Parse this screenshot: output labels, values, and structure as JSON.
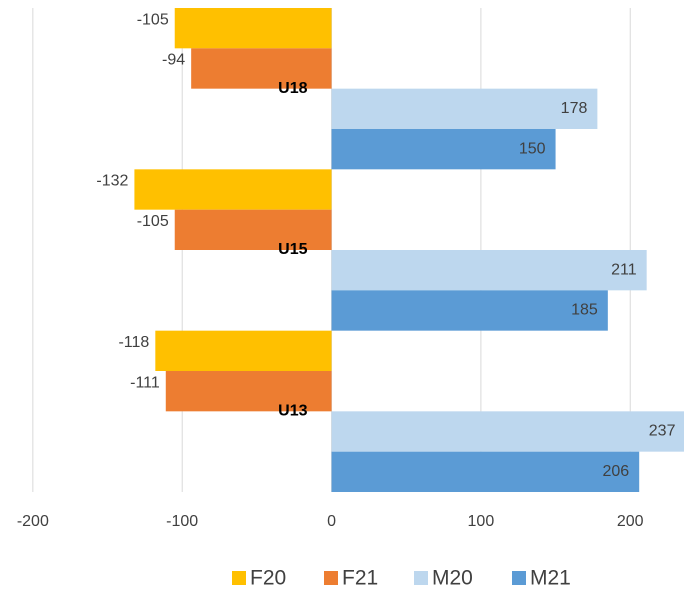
{
  "chart_data": {
    "type": "bar",
    "orientation": "horizontal",
    "categories": [
      "U18",
      "U15",
      "U13"
    ],
    "series": [
      {
        "name": "F20",
        "color": "#ffc000",
        "values": [
          -105,
          -132,
          -118
        ]
      },
      {
        "name": "F21",
        "color": "#ed7d31",
        "values": [
          -94,
          -105,
          -111
        ]
      },
      {
        "name": "M20",
        "color": "#bdd7ee",
        "values": [
          178,
          211,
          237
        ]
      },
      {
        "name": "M21",
        "color": "#5b9bd5",
        "values": [
          150,
          185,
          206
        ]
      }
    ],
    "xlim": [
      -222,
      236
    ],
    "xticks": [
      -200,
      -100,
      0,
      100,
      200
    ],
    "grid": true,
    "legend": "bottom"
  }
}
